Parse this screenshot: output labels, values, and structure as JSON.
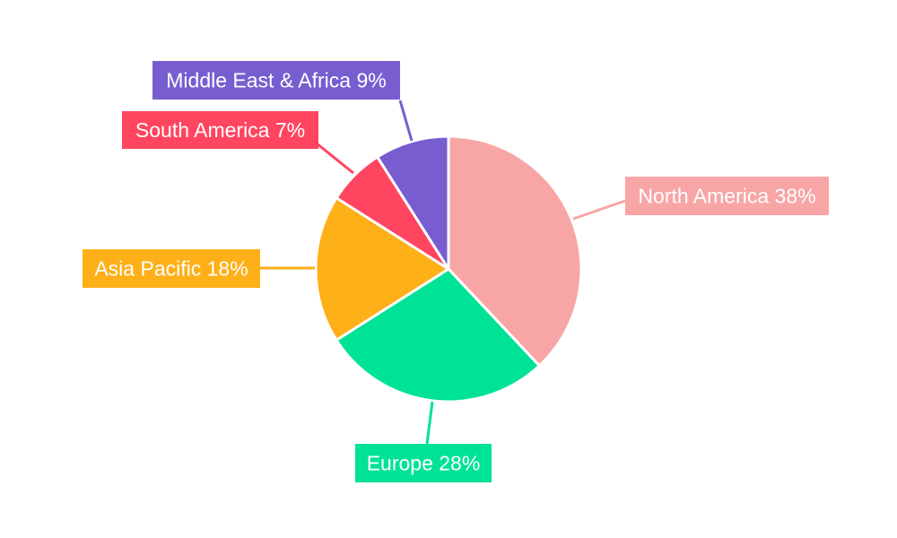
{
  "chart_data": {
    "type": "pie",
    "title": "",
    "slices": [
      {
        "label": "North America",
        "value": 38,
        "display": "North America 38%",
        "color": "#f8a5a5"
      },
      {
        "label": "Europe",
        "value": 28,
        "display": "Europe 28%",
        "color": "#00e396"
      },
      {
        "label": "Asia Pacific",
        "value": 18,
        "display": "Asia Pacific 18%",
        "color": "#feb019"
      },
      {
        "label": "South America",
        "value": 7,
        "display": "South America 7%",
        "color": "#ff4560"
      },
      {
        "label": "Middle East & Africa",
        "value": 9,
        "display": "Middle East & Africa 9%",
        "color": "#775dd0"
      }
    ],
    "start": "12 o'clock",
    "direction": "clockwise",
    "legend": "none",
    "labels": "outside with leader lines"
  }
}
